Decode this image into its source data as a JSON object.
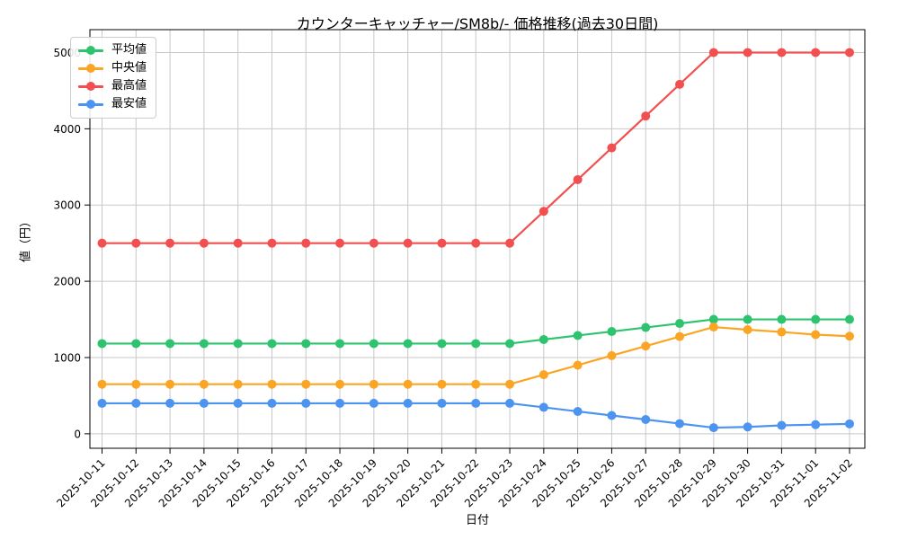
{
  "chart_data": {
    "type": "line",
    "title": "カウンターキャッチャー/SM8b/- 価格推移(過去30日間)",
    "xlabel": "日付",
    "ylabel": "値（円）",
    "grid": true,
    "legend_position": "upper left",
    "yticks": [
      0,
      1000,
      2000,
      3000,
      4000,
      5000
    ],
    "ylim": [
      -190,
      5300
    ],
    "categories": [
      "2025-10-11",
      "2025-10-12",
      "2025-10-13",
      "2025-10-14",
      "2025-10-15",
      "2025-10-16",
      "2025-10-17",
      "2025-10-18",
      "2025-10-19",
      "2025-10-20",
      "2025-10-21",
      "2025-10-22",
      "2025-10-23",
      "2025-10-24",
      "2025-10-25",
      "2025-10-26",
      "2025-10-27",
      "2025-10-28",
      "2025-10-29",
      "2025-10-30",
      "2025-10-31",
      "2025-11-01",
      "2025-11-02"
    ],
    "series": [
      {
        "name": "平均値",
        "color": "#2ec46f",
        "values": [
          1183,
          1183,
          1183,
          1183,
          1183,
          1183,
          1183,
          1183,
          1183,
          1183,
          1183,
          1183,
          1183,
          1236,
          1289,
          1341,
          1394,
          1447,
          1500,
          1500,
          1500,
          1500,
          1500
        ]
      },
      {
        "name": "中央値",
        "color": "#fba524",
        "values": [
          650,
          650,
          650,
          650,
          650,
          650,
          650,
          650,
          650,
          650,
          650,
          650,
          650,
          775,
          900,
          1025,
          1150,
          1275,
          1400,
          1365,
          1335,
          1300,
          1280
        ]
      },
      {
        "name": "最高値",
        "color": "#f25050",
        "values": [
          2500,
          2500,
          2500,
          2500,
          2500,
          2500,
          2500,
          2500,
          2500,
          2500,
          2500,
          2500,
          2500,
          2917,
          3333,
          3750,
          4167,
          4583,
          5000,
          5000,
          5000,
          5000,
          5000
        ]
      },
      {
        "name": "最安値",
        "color": "#4d94f0",
        "values": [
          400,
          400,
          400,
          400,
          400,
          400,
          400,
          400,
          400,
          400,
          400,
          400,
          400,
          347,
          293,
          240,
          187,
          133,
          80,
          90,
          110,
          120,
          130
        ]
      }
    ]
  }
}
